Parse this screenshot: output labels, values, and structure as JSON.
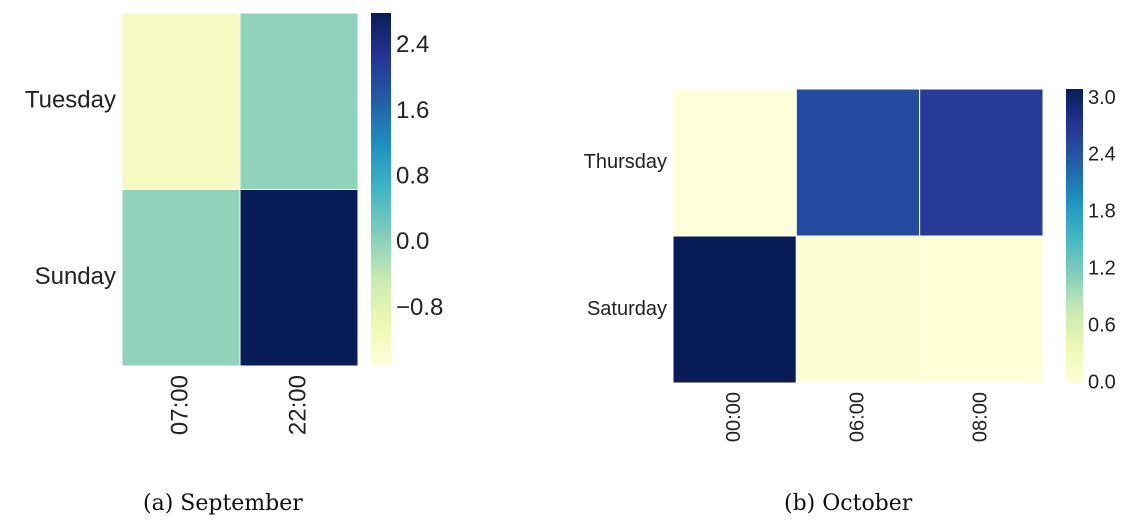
{
  "chart_data": [
    {
      "type": "heatmap",
      "caption": "(a) September",
      "rows": [
        "Tuesday",
        "Sunday"
      ],
      "columns": [
        "07:00",
        "22:00"
      ],
      "values": [
        [
          -1.2,
          0.0
        ],
        [
          0.0,
          2.8
        ]
      ],
      "colorbar": {
        "min": -1.5,
        "max": 2.8,
        "ticks": [
          "2.4",
          "1.6",
          "0.8",
          "0.0",
          "−0.8"
        ],
        "tick_values": [
          2.4,
          1.6,
          0.8,
          0.0,
          -0.8
        ]
      },
      "colormap": "YlGnBu",
      "gridlines": false
    },
    {
      "type": "heatmap",
      "caption": "(b) October",
      "rows": [
        "Thursday",
        "Saturday"
      ],
      "columns": [
        "00:00",
        "06:00",
        "08:00"
      ],
      "values": [
        [
          0.0,
          2.5,
          2.65
        ],
        [
          3.1,
          0.05,
          0.02
        ]
      ],
      "colorbar": {
        "min": 0.0,
        "max": 3.1,
        "ticks": [
          "3.0",
          "2.4",
          "1.8",
          "1.2",
          "0.6",
          "0.0"
        ],
        "tick_values": [
          3.0,
          2.4,
          1.8,
          1.2,
          0.6,
          0.0
        ]
      },
      "colormap": "YlGnBu",
      "gridlines": false
    }
  ],
  "colormap_stops": [
    "#ffffd9",
    "#edf8b1",
    "#c7e9b4",
    "#7fcdbb",
    "#41b6c4",
    "#1d91c0",
    "#225ea8",
    "#253494",
    "#081d58"
  ]
}
